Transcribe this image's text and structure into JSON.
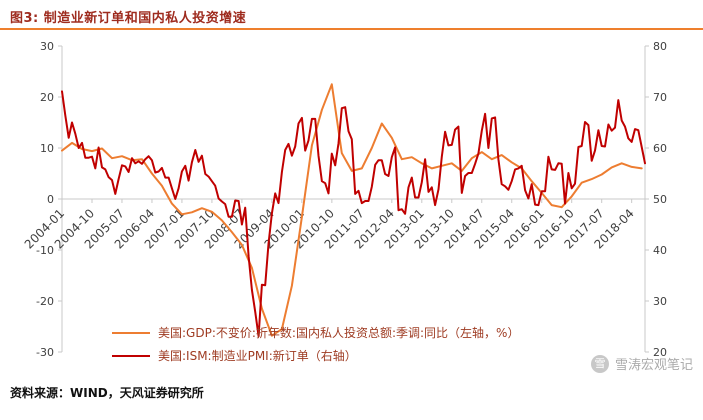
{
  "header": {
    "figure_label": "图3: ",
    "title": "制造业新订单和国内私人投资增速"
  },
  "footer": {
    "source": "资料来源：WIND，天风证券研究所",
    "watermark": "雪涛宏观笔记",
    "watermark_logo_char": "雪"
  },
  "colors": {
    "accent": "#EE7F2D",
    "title_text": "#9E2B1E",
    "legend_text": "#9E3B22",
    "axis_text": "#3F3F3F",
    "axis_line": "#C9C9C9",
    "watermark": "#ABABAB"
  },
  "chart_data": {
    "type": "line",
    "title": "制造业新订单和国内私人投资增速",
    "grid": false,
    "legend_position": "bottom",
    "x_start": "2004-01",
    "x_end": "2018-08",
    "x_unit": "month",
    "months_total": 176,
    "x_tick_labels": [
      "2004-01",
      "2004-10",
      "2005-07",
      "2006-04",
      "2007-01",
      "2007-10",
      "2008-07",
      "2009-04",
      "2010-01",
      "2010-10",
      "2011-07",
      "2012-04",
      "2013-01",
      "2013-10",
      "2014-07",
      "2015-04",
      "2016-01",
      "2016-10",
      "2017-07",
      "2018-04"
    ],
    "x_tick_months": [
      0,
      9,
      18,
      27,
      36,
      45,
      54,
      63,
      72,
      81,
      90,
      99,
      108,
      117,
      126,
      135,
      144,
      153,
      162,
      171
    ],
    "left_axis": {
      "min": -30,
      "max": 30,
      "ticks": [
        30,
        20,
        10,
        0,
        -10,
        -20,
        -30
      ]
    },
    "right_axis": {
      "min": 20,
      "max": 80,
      "ticks": [
        80,
        70,
        60,
        50,
        40,
        30,
        20
      ]
    },
    "series": [
      {
        "name": "美国:GDP:不变价:折年数:国内私人投资总额:季调:同比（左轴，%）",
        "axis": "left",
        "color": "#ED7D31",
        "x_month_step": 3,
        "values": [
          9.5,
          11.0,
          9.8,
          9.4,
          9.9,
          8.0,
          8.4,
          7.6,
          7.8,
          5.0,
          2.6,
          -0.9,
          -3.0,
          -2.6,
          -1.8,
          -2.5,
          -4.2,
          -6.5,
          -9.0,
          -13.5,
          -21.5,
          -26.8,
          -25.5,
          -17.0,
          -3.5,
          10.5,
          17.5,
          22.5,
          9.0,
          5.5,
          6.0,
          10.0,
          14.8,
          12.0,
          7.8,
          8.2,
          7.0,
          6.0,
          6.5,
          7.0,
          5.5,
          8.0,
          9.2,
          7.8,
          8.6,
          7.2,
          6.0,
          3.5,
          1.2,
          -1.2,
          -1.6,
          0.5,
          3.2,
          3.9,
          4.8,
          6.2,
          7.0,
          6.3,
          6.0
        ]
      },
      {
        "name": "美国:ISM:制造业PMI:新订单（右轴）",
        "axis": "right",
        "color": "#C00000",
        "x_month_step": 1,
        "values": [
          71.1,
          66.4,
          62.0,
          65.0,
          62.8,
          60.0,
          61.0,
          58.1,
          58.1,
          58.3,
          56.0,
          60.1,
          56.2,
          55.8,
          54.3,
          53.7,
          51.0,
          53.9,
          56.6,
          56.4,
          55.3,
          58.0,
          57.0,
          57.4,
          56.9,
          57.8,
          58.4,
          57.6,
          55.2,
          55.4,
          56.1,
          54.2,
          54.2,
          52.1,
          50.0,
          52.1,
          55.4,
          56.5,
          53.6,
          57.2,
          59.6,
          57.3,
          58.5,
          54.9,
          54.4,
          53.5,
          52.6,
          50.1,
          49.5,
          49.0,
          46.5,
          46.5,
          49.7,
          49.6,
          45.0,
          48.3,
          38.8,
          32.2,
          27.9,
          23.1,
          33.2,
          33.1,
          41.2,
          47.2,
          51.1,
          49.2,
          55.3,
          59.6,
          60.8,
          58.5,
          60.3,
          64.8,
          65.9,
          59.5,
          61.5,
          65.7,
          65.7,
          58.5,
          53.5,
          53.1,
          51.1,
          58.9,
          56.6,
          60.9,
          67.8,
          68.0,
          63.3,
          61.7,
          51.0,
          51.6,
          49.2,
          49.6,
          49.6,
          52.4,
          56.7,
          57.6,
          57.6,
          54.9,
          54.5,
          58.2,
          60.1,
          47.8,
          48.0,
          47.1,
          52.3,
          54.2,
          50.3,
          50.3,
          53.3,
          57.8,
          51.4,
          52.3,
          48.8,
          51.9,
          58.3,
          63.2,
          60.5,
          60.6,
          63.6,
          64.2,
          51.2,
          54.5,
          55.1,
          55.1,
          56.9,
          58.9,
          63.4,
          66.7,
          60.0,
          65.8,
          66.0,
          57.8,
          52.9,
          52.5,
          51.8,
          53.5,
          55.8,
          56.0,
          56.5,
          51.7,
          50.1,
          52.9,
          48.9,
          48.8,
          51.5,
          51.5,
          58.3,
          55.8,
          55.7,
          57.0,
          56.9,
          49.1,
          55.1,
          52.1,
          53.0,
          60.2,
          60.4,
          65.1,
          64.5,
          57.5,
          59.5,
          63.5,
          60.4,
          60.3,
          64.6,
          63.4,
          64.0,
          69.4,
          65.4,
          64.2,
          61.9,
          61.2,
          63.7,
          63.5,
          60.2,
          57.0
        ]
      }
    ]
  }
}
